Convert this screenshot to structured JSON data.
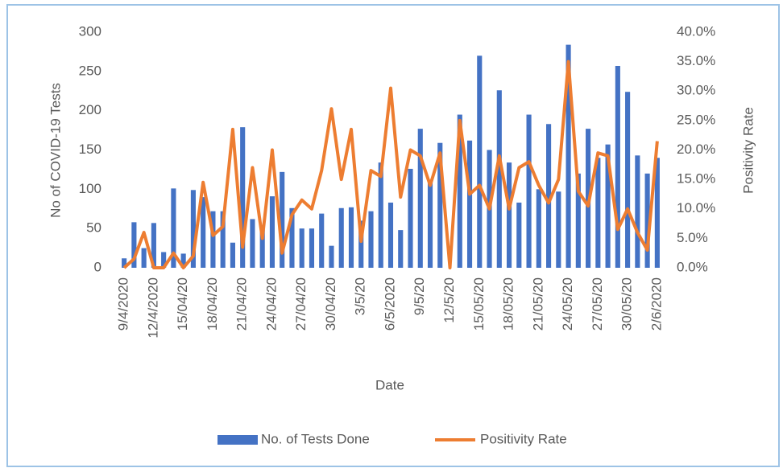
{
  "chart_data": {
    "type": "bar_line",
    "x_label": "Date",
    "y_label": "No of COVID-19 Tests",
    "y2_label": "Positivity Rate",
    "categories": [
      "9/4/2020",
      null,
      null,
      "12/4/2020",
      null,
      null,
      "15/04/20",
      null,
      null,
      "18/04/20",
      null,
      null,
      "21/04/20",
      null,
      null,
      "24/04/20",
      null,
      null,
      "27/04/20",
      null,
      null,
      "30/04/20",
      null,
      null,
      "3/5/20",
      null,
      null,
      "6/5/2020",
      null,
      null,
      "9/5/20",
      null,
      null,
      "12/5/20",
      null,
      null,
      "15/05/20",
      null,
      null,
      "18/05/20",
      null,
      null,
      "21/05/20",
      null,
      null,
      "24/05/20",
      null,
      null,
      "27/05/20",
      null,
      null,
      "30/05/20",
      null,
      null,
      "2/6/2020"
    ],
    "ylim": [
      0,
      300
    ],
    "yticks": [
      0,
      50,
      100,
      150,
      200,
      250,
      300
    ],
    "y2lim": [
      0,
      40
    ],
    "y2ticks": [
      {
        "value": 0,
        "label": "0.0%"
      },
      {
        "value": 5,
        "label": "5.0%"
      },
      {
        "value": 10,
        "label": "10.0%"
      },
      {
        "value": 15,
        "label": "15.0%"
      },
      {
        "value": 20,
        "label": "20.0%"
      },
      {
        "value": 25,
        "label": "25.0%"
      },
      {
        "value": 30,
        "label": "30.0%"
      },
      {
        "value": 35,
        "label": "35.0%"
      },
      {
        "value": 40,
        "label": "40.0%"
      }
    ],
    "legend": "bottom",
    "series": [
      {
        "name": "No. of Tests Done",
        "type": "bar",
        "color": "#4472c4",
        "values": [
          12,
          58,
          25,
          57,
          20,
          101,
          18,
          99,
          90,
          72,
          72,
          32,
          179,
          62,
          50,
          91,
          122,
          76,
          50,
          50,
          69,
          28,
          76,
          77,
          60,
          72,
          134,
          83,
          48,
          126,
          177,
          110,
          159,
          0,
          195,
          162,
          270,
          150,
          226,
          134,
          83,
          195,
          100,
          183,
          97,
          284,
          120,
          177,
          140,
          157,
          257,
          224,
          143,
          120,
          140
        ]
      },
      {
        "name": "Positivity Rate",
        "type": "line",
        "axis": "y2",
        "color": "#ed7d31",
        "values": [
          0,
          1.5,
          6,
          0,
          0,
          2.5,
          0,
          2,
          14.5,
          5.5,
          7,
          23.5,
          3.5,
          17,
          5,
          20,
          2.5,
          9,
          11.5,
          10,
          16.5,
          27,
          15,
          23.5,
          4.5,
          16.5,
          15.5,
          30.5,
          12,
          20,
          19,
          14,
          19.5,
          0,
          25,
          12.5,
          14,
          10,
          19,
          10,
          17,
          18,
          14,
          11,
          15,
          35,
          13,
          10.5,
          19.5,
          19,
          6.5,
          10,
          6,
          3,
          21.5
        ]
      }
    ]
  }
}
